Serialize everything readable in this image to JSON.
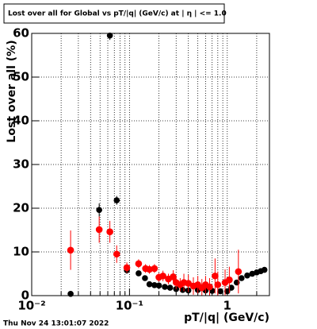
{
  "chart_data": {
    "type": "scatter",
    "title": "Lost over all for Global vs pT/|q| (GeV/c) at | η | <= 1.0",
    "x_label": "pT/|q| (GeV/c)",
    "y_label": "Lost over all (%)",
    "timestamp": "Thu Nov 24 13:01:07 2022",
    "xscale": "log",
    "grid": true,
    "xlim": [
      0.01,
      2.7
    ],
    "ylim": [
      0,
      60
    ],
    "xticks": [
      {
        "value": 0.01,
        "label": "10⁻²"
      },
      {
        "value": 0.1,
        "label": "10⁻¹"
      },
      1
    ],
    "xminorticks": [
      0.02,
      0.03,
      0.04,
      0.05,
      0.06,
      0.07,
      0.08,
      0.09,
      0.2,
      0.3,
      0.4,
      0.5,
      0.6,
      0.7,
      0.8,
      0.9,
      2
    ],
    "yticks": [
      0,
      10,
      20,
      30,
      40,
      50,
      60
    ],
    "series": [
      {
        "color": "#000000",
        "x": [
          0.025,
          0.049,
          0.063,
          0.074,
          0.094,
          0.124,
          0.144,
          0.16,
          0.18,
          0.2,
          0.23,
          0.26,
          0.3,
          0.35,
          0.4,
          0.5,
          0.6,
          0.7,
          0.85,
          1.0,
          1.1,
          1.25,
          1.4,
          1.6,
          1.8,
          2.0,
          2.2,
          2.4
        ],
        "values": [
          0.4,
          19.6,
          59.5,
          21.8,
          5.8,
          5.1,
          4.0,
          2.6,
          2.4,
          2.3,
          2.0,
          1.8,
          1.5,
          1.3,
          1.2,
          1.3,
          1.2,
          1.1,
          1.0,
          1.0,
          1.8,
          3.0,
          4.0,
          4.6,
          5.0,
          5.3,
          5.6,
          5.9
        ],
        "errors": [
          0.3,
          1.5,
          1,
          1,
          0.8,
          0.6,
          0.5,
          0.4,
          0.4,
          0.4,
          0.4,
          0.4,
          0.4,
          0.4,
          0.4,
          0.4,
          0.4,
          0.4,
          0.4,
          0.4,
          0.4,
          0.4,
          0.4,
          0.4,
          0.4,
          0.4,
          0.4,
          0.4
        ]
      },
      {
        "color": "#ff0000",
        "x": [
          0.025,
          0.049,
          0.063,
          0.074,
          0.094,
          0.124,
          0.146,
          0.16,
          0.18,
          0.2,
          0.22,
          0.25,
          0.28,
          0.3,
          0.33,
          0.36,
          0.4,
          0.45,
          0.5,
          0.55,
          0.6,
          0.66,
          0.75,
          0.8,
          0.95,
          1.05,
          1.3
        ],
        "values": [
          10.4,
          15.1,
          14.6,
          9.5,
          6.4,
          7.3,
          6.2,
          6.0,
          6.2,
          4.2,
          4.5,
          3.8,
          4.3,
          3.0,
          2.5,
          3.0,
          2.8,
          2.2,
          2.5,
          1.8,
          2.5,
          2.0,
          4.5,
          2.5,
          3.0,
          3.6,
          5.5
        ],
        "errors": [
          4.5,
          3,
          2.5,
          2,
          1.2,
          1,
          1,
          1,
          1,
          1,
          1.2,
          1.2,
          1.5,
          1.5,
          1.5,
          2,
          2,
          2,
          2,
          2,
          2,
          2,
          4,
          3,
          3,
          3,
          5
        ]
      }
    ]
  }
}
